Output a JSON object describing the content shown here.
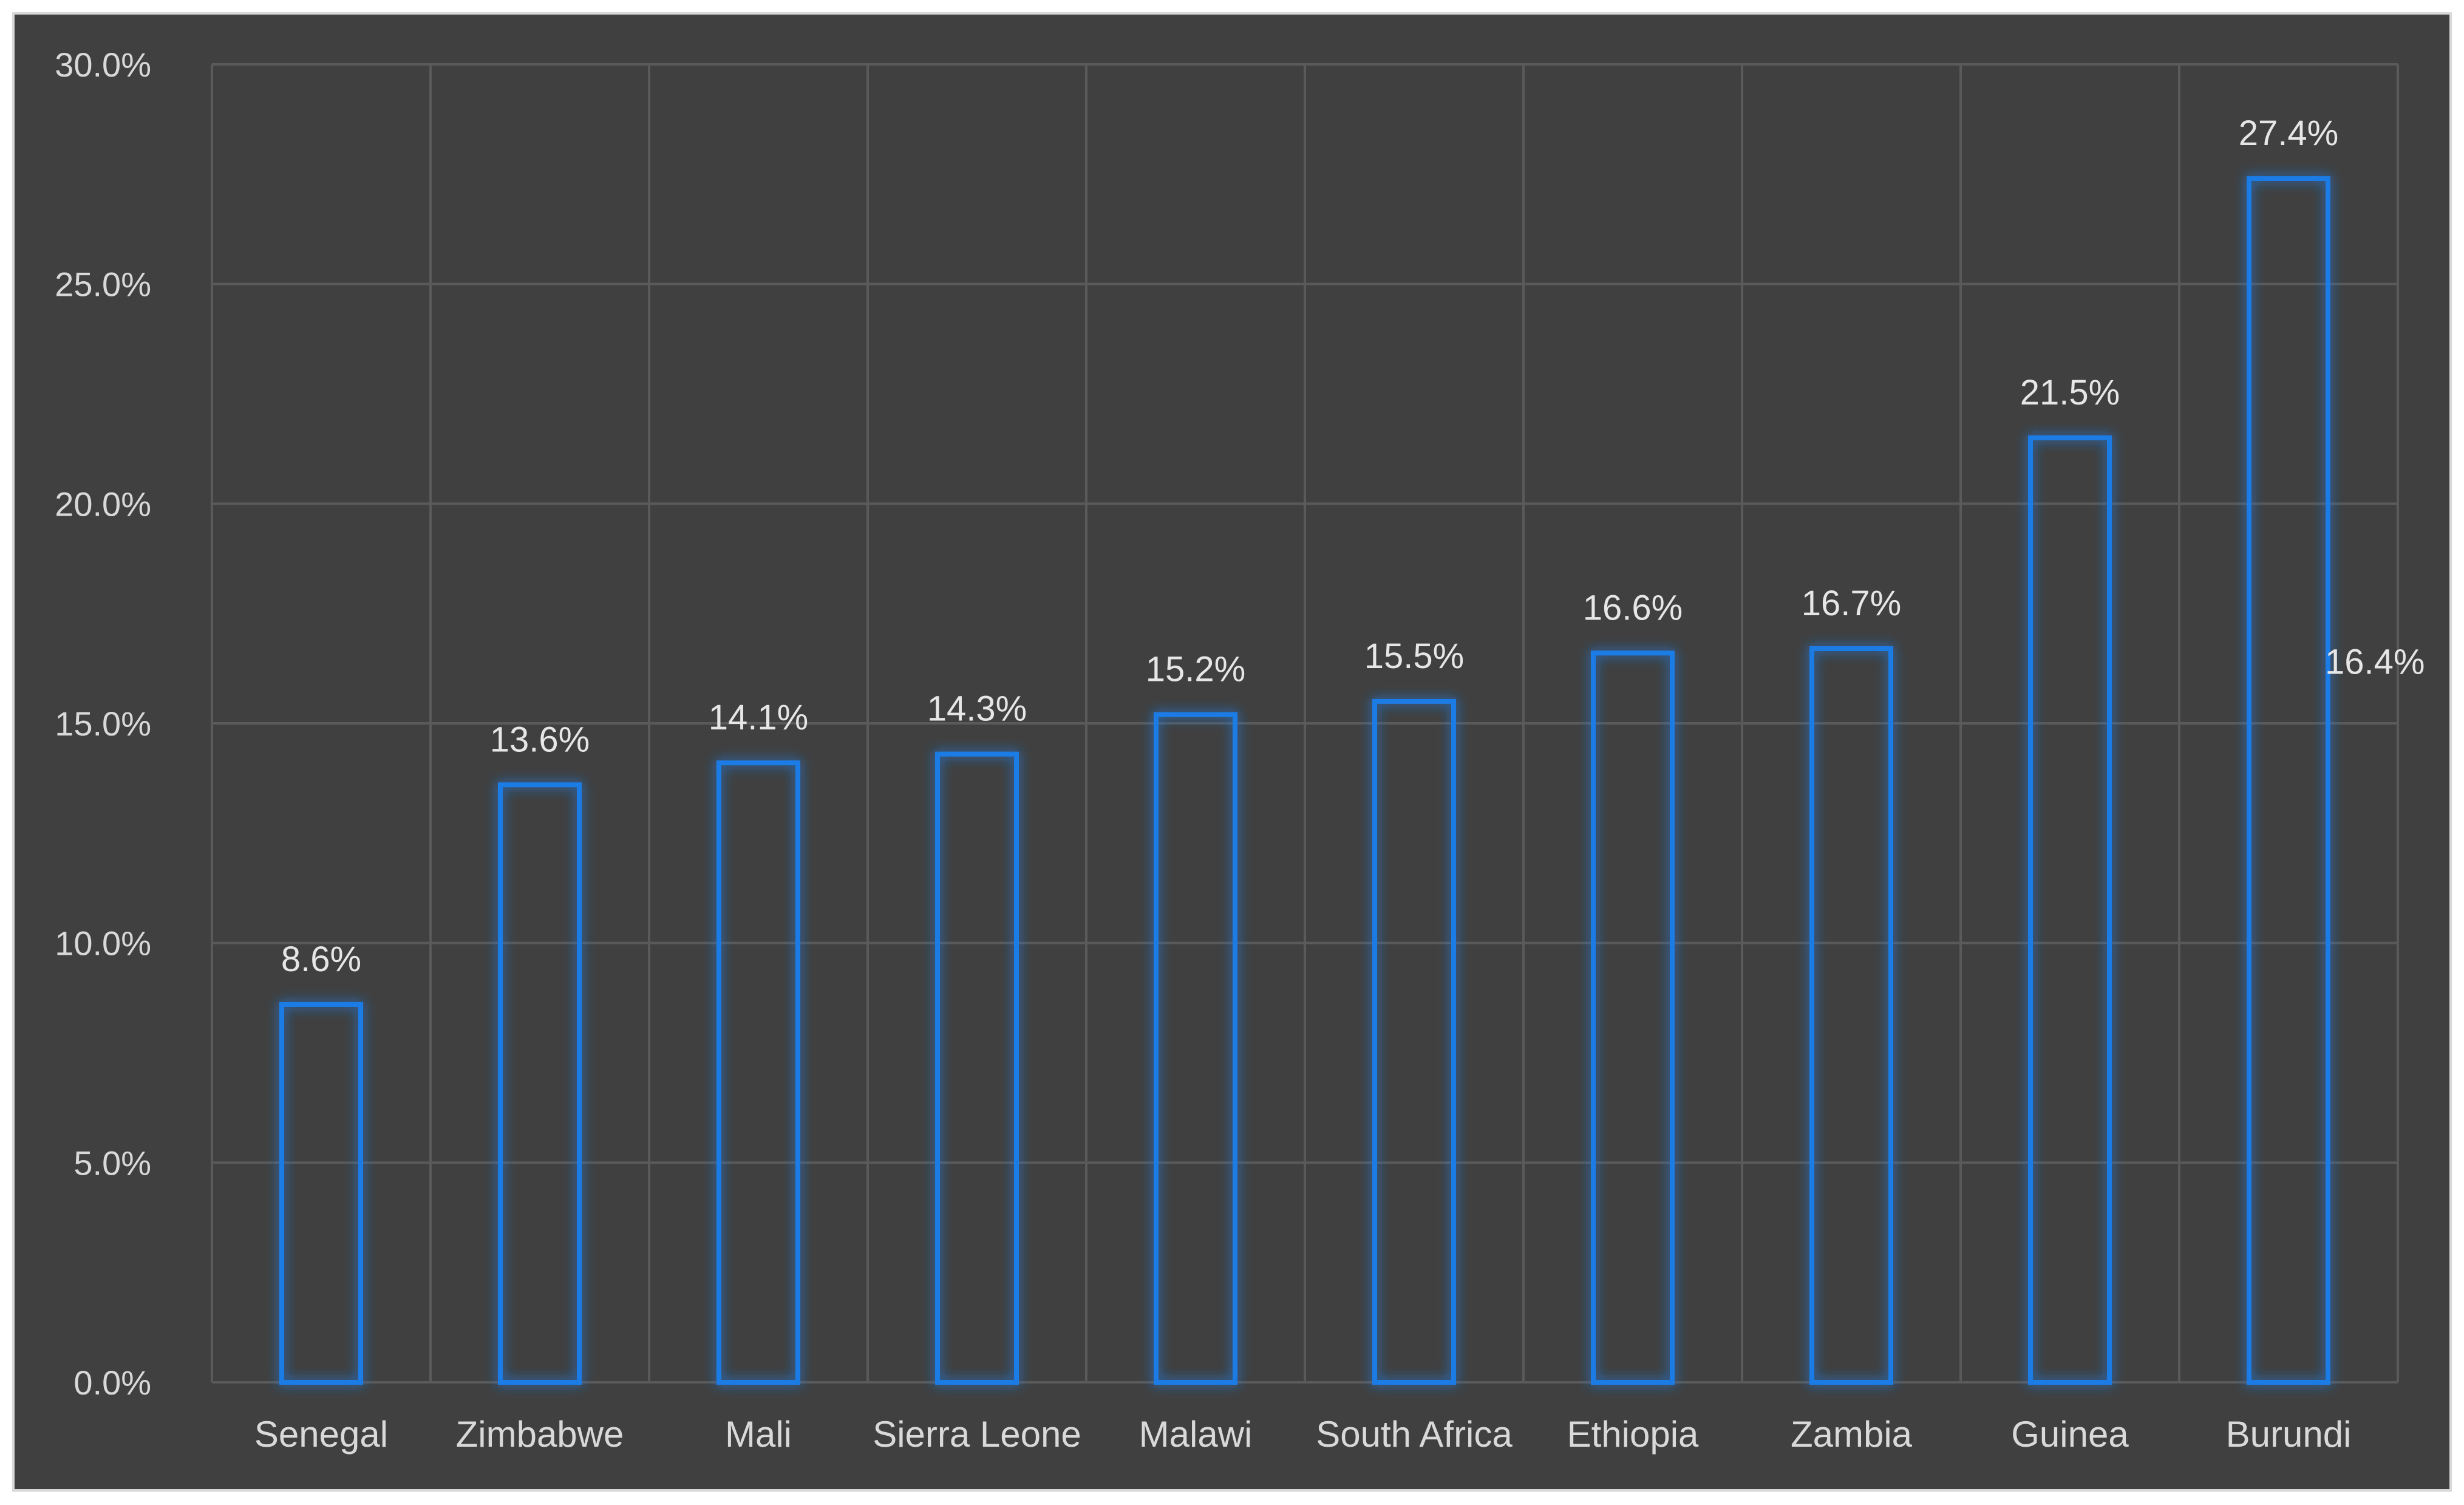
{
  "chart_data": {
    "type": "bar",
    "categories": [
      "Senegal",
      "Zimbabwe",
      "Mali",
      "Sierra Leone",
      "Malawi",
      "South Africa",
      "Ethiopia",
      "Zambia",
      "Guinea",
      "Burundi"
    ],
    "values": [
      8.6,
      13.6,
      14.1,
      14.3,
      15.2,
      15.5,
      16.6,
      16.7,
      21.5,
      27.4
    ],
    "value_labels": [
      "8.6%",
      "13.6%",
      "14.1%",
      "14.3%",
      "15.2%",
      "15.5%",
      "16.6%",
      "16.7%",
      "21.5%",
      "27.4%"
    ],
    "reference_line": {
      "value": 16.4,
      "label": "16.4%"
    },
    "ylim": [
      0,
      30
    ],
    "yticks": [
      0,
      5,
      10,
      15,
      20,
      25,
      30
    ],
    "ytick_labels": [
      "0.0%",
      "5.0%",
      "10.0%",
      "15.0%",
      "20.0%",
      "25.0%",
      "30.0%"
    ],
    "grid": true,
    "colors": {
      "background": "#404040",
      "bar_outline": "#1e7be6",
      "bar_glow": "#2f8cff",
      "reference_line": "#f07a26",
      "gridline": "#5a5a5a",
      "text": "#d9d9d9"
    }
  }
}
